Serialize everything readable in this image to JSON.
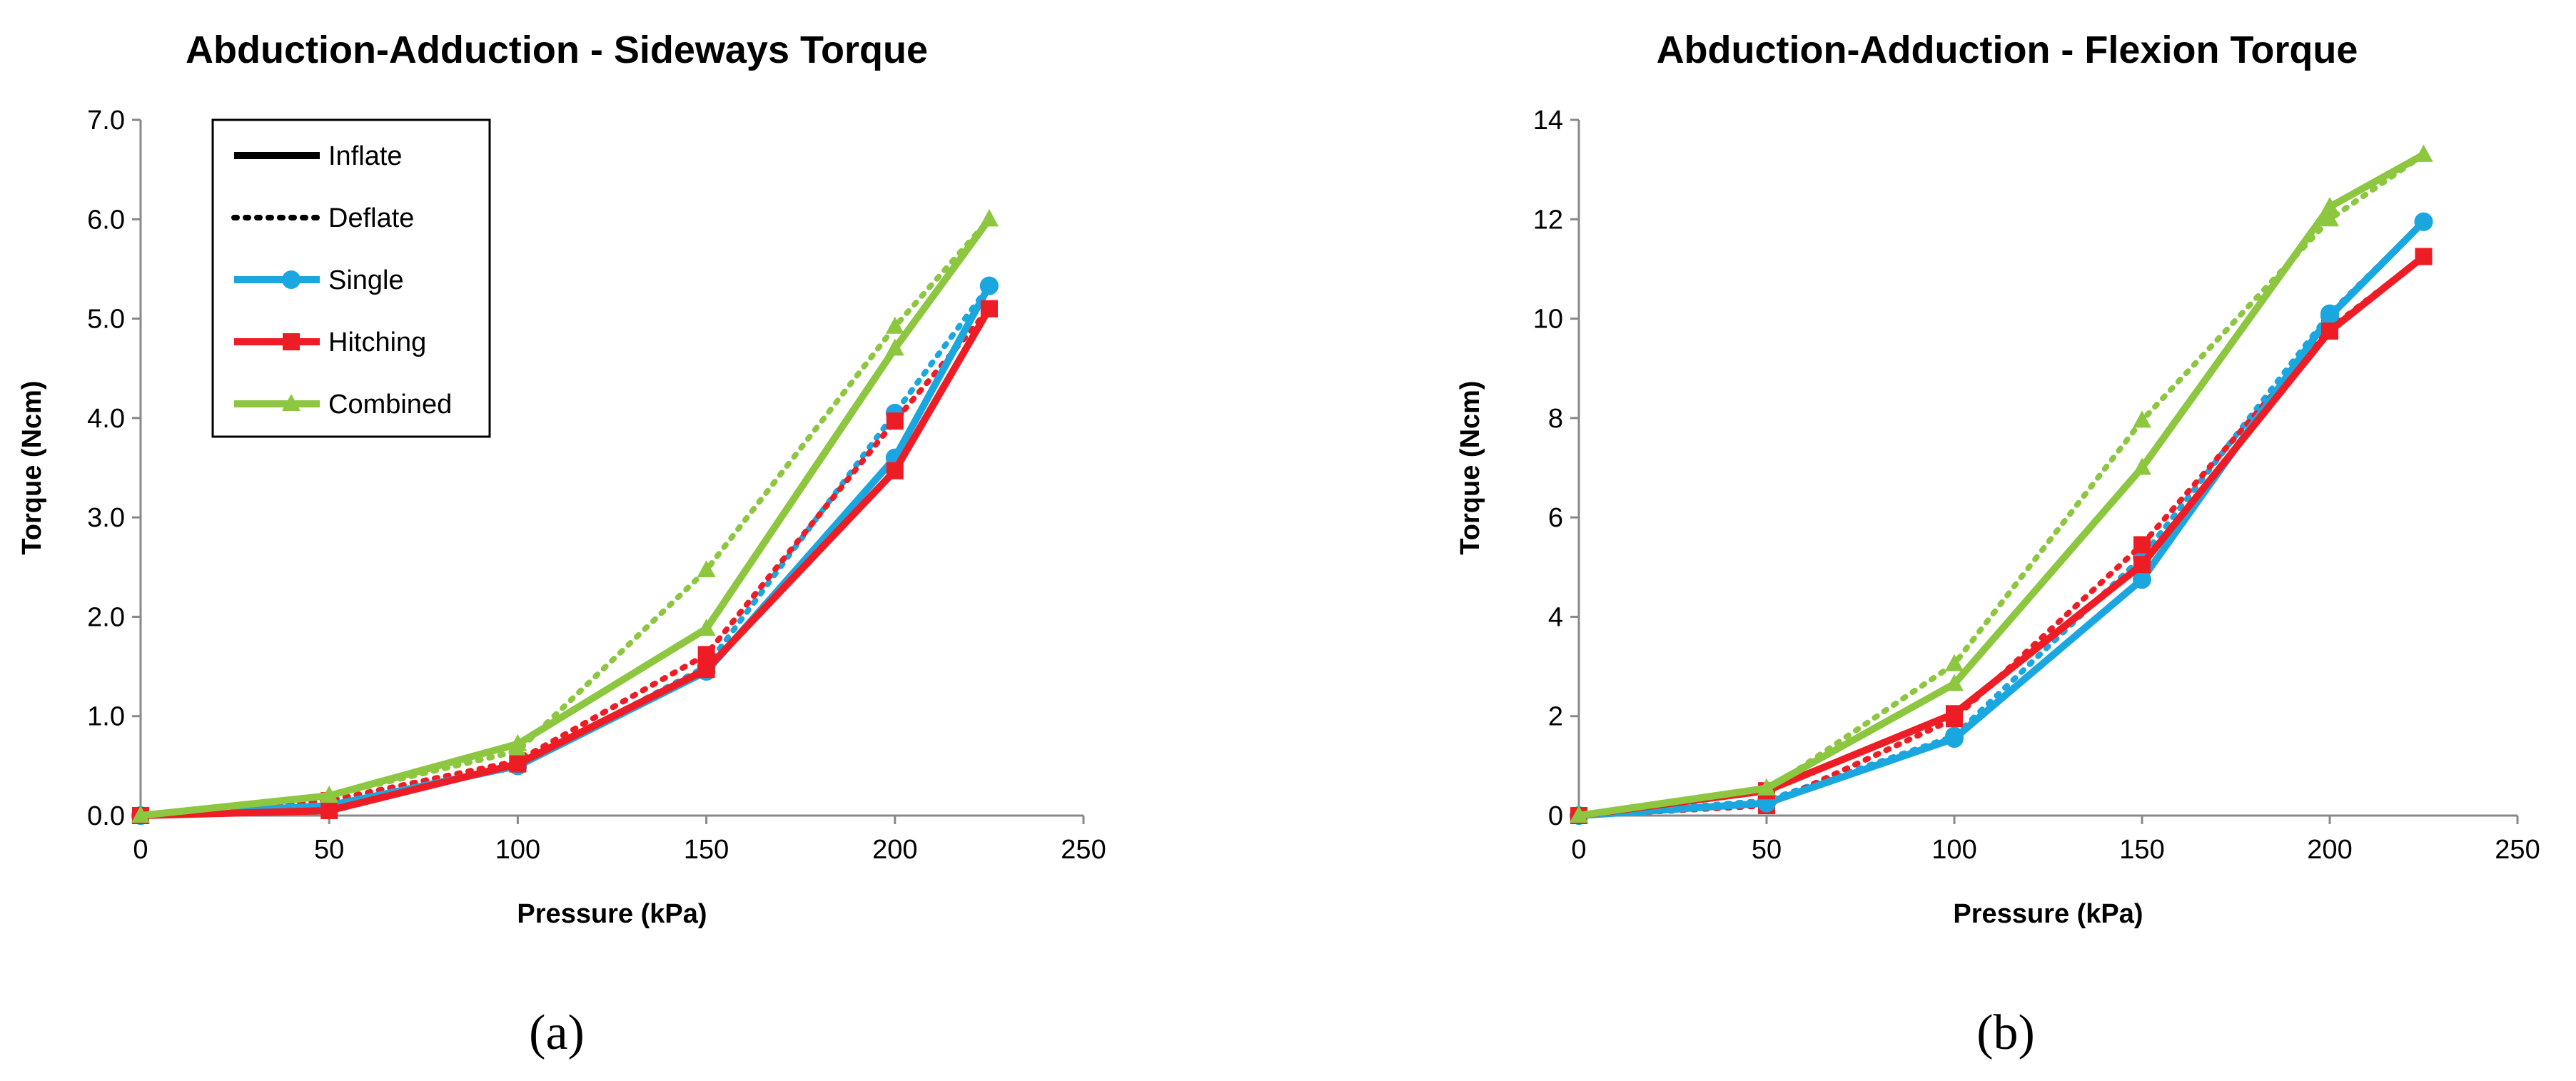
{
  "chart_data": [
    {
      "type": "line",
      "panel": "a",
      "title": "Abduction-Adduction - Sideways Torque",
      "xlabel": "Pressure (kPa)",
      "ylabel": "Torque (Ncm)",
      "xlim": [
        0,
        250
      ],
      "ylim": [
        0,
        7
      ],
      "xticks": [
        0,
        50,
        100,
        150,
        200,
        250
      ],
      "yticks": [
        0,
        1,
        2,
        3,
        4,
        5,
        6,
        7
      ],
      "xtick_labels": [
        "0",
        "50",
        "100",
        "150",
        "200",
        "250"
      ],
      "ytick_labels": [
        "0.0",
        "1.0",
        "2.0",
        "3.0",
        "4.0",
        "5.0",
        "6.0",
        "7.0"
      ],
      "grid": false,
      "legend": {
        "placement": "top-left",
        "entries": [
          {
            "label": "Inflate",
            "style": "solid",
            "color": "#000000",
            "marker": "none"
          },
          {
            "label": "Deflate",
            "style": "dotted",
            "color": "#000000",
            "marker": "none"
          },
          {
            "label": "Single",
            "style": "solid",
            "color": "#1aa7e0",
            "marker": "circle"
          },
          {
            "label": "Hitching",
            "style": "solid",
            "color": "#ee1c25",
            "marker": "square"
          },
          {
            "label": "Combined",
            "style": "solid",
            "color": "#8dc63f",
            "marker": "triangle"
          }
        ]
      },
      "series": [
        {
          "name": "Single",
          "mode": "Inflate",
          "color": "#1aa7e0",
          "marker": "circle",
          "style": "solid",
          "x": [
            0,
            50,
            100,
            150,
            200,
            225
          ],
          "y": [
            0,
            0.1,
            0.5,
            1.45,
            3.6,
            5.33
          ]
        },
        {
          "name": "Single",
          "mode": "Deflate",
          "color": "#1aa7e0",
          "marker": "circle",
          "style": "dotted",
          "x": [
            0,
            50,
            100,
            150,
            200,
            225
          ],
          "y": [
            0,
            0.12,
            0.5,
            1.5,
            4.05,
            5.33
          ]
        },
        {
          "name": "Hitching",
          "mode": "Inflate",
          "color": "#ee1c25",
          "marker": "square",
          "style": "solid",
          "x": [
            0,
            50,
            100,
            150,
            200,
            225
          ],
          "y": [
            0,
            0.05,
            0.52,
            1.47,
            3.47,
            5.1
          ]
        },
        {
          "name": "Hitching",
          "mode": "Deflate",
          "color": "#ee1c25",
          "marker": "square",
          "style": "dotted",
          "x": [
            0,
            50,
            100,
            150,
            200,
            225
          ],
          "y": [
            0,
            0.15,
            0.55,
            1.62,
            3.97,
            5.1
          ]
        },
        {
          "name": "Combined",
          "mode": "Inflate",
          "color": "#8dc63f",
          "marker": "triangle",
          "style": "solid",
          "x": [
            0,
            50,
            100,
            150,
            200,
            225
          ],
          "y": [
            0,
            0.2,
            0.72,
            1.88,
            4.7,
            6.0
          ]
        },
        {
          "name": "Combined",
          "mode": "Deflate",
          "color": "#8dc63f",
          "marker": "triangle",
          "style": "dotted",
          "x": [
            0,
            50,
            100,
            150,
            200,
            225
          ],
          "y": [
            0,
            0.2,
            0.65,
            2.47,
            4.92,
            6.0
          ]
        }
      ]
    },
    {
      "type": "line",
      "panel": "b",
      "title": "Abduction-Adduction - Flexion Torque",
      "xlabel": "Pressure (kPa)",
      "ylabel": "Torque (Ncm)",
      "xlim": [
        0,
        250
      ],
      "ylim": [
        0,
        14
      ],
      "xticks": [
        0,
        50,
        100,
        150,
        200,
        250
      ],
      "yticks": [
        0,
        2,
        4,
        6,
        8,
        10,
        12,
        14
      ],
      "xtick_labels": [
        "0",
        "50",
        "100",
        "150",
        "200",
        "250"
      ],
      "ytick_labels": [
        "0",
        "2",
        "4",
        "6",
        "8",
        "10",
        "12",
        "14"
      ],
      "grid": false,
      "series": [
        {
          "name": "Single",
          "mode": "Inflate",
          "color": "#1aa7e0",
          "marker": "circle",
          "style": "solid",
          "x": [
            0,
            50,
            100,
            150,
            200,
            225
          ],
          "y": [
            0,
            0.25,
            1.55,
            4.75,
            10.05,
            11.95
          ]
        },
        {
          "name": "Single",
          "mode": "Deflate",
          "color": "#1aa7e0",
          "marker": "circle",
          "style": "dotted",
          "x": [
            0,
            50,
            100,
            150,
            200,
            225
          ],
          "y": [
            0,
            0.3,
            1.6,
            5.2,
            10.1,
            11.95
          ]
        },
        {
          "name": "Hitching",
          "mode": "Inflate",
          "color": "#ee1c25",
          "marker": "square",
          "style": "solid",
          "x": [
            0,
            50,
            100,
            150,
            200,
            225
          ],
          "y": [
            0,
            0.5,
            2.05,
            5.05,
            9.75,
            11.25
          ]
        },
        {
          "name": "Hitching",
          "mode": "Deflate",
          "color": "#ee1c25",
          "marker": "square",
          "style": "dotted",
          "x": [
            0,
            50,
            100,
            150,
            200,
            225
          ],
          "y": [
            0,
            0.2,
            1.95,
            5.45,
            9.8,
            11.25
          ]
        },
        {
          "name": "Combined",
          "mode": "Inflate",
          "color": "#8dc63f",
          "marker": "triangle",
          "style": "solid",
          "x": [
            0,
            50,
            100,
            150,
            200,
            225
          ],
          "y": [
            0,
            0.55,
            2.65,
            7.0,
            12.25,
            13.3
          ]
        },
        {
          "name": "Combined",
          "mode": "Deflate",
          "color": "#8dc63f",
          "marker": "triangle",
          "style": "dotted",
          "x": [
            0,
            50,
            100,
            150,
            200,
            225
          ],
          "y": [
            0,
            0.5,
            3.05,
            7.95,
            12.0,
            13.3
          ]
        }
      ]
    }
  ],
  "panel_labels": [
    "(a)",
    "(b)"
  ]
}
